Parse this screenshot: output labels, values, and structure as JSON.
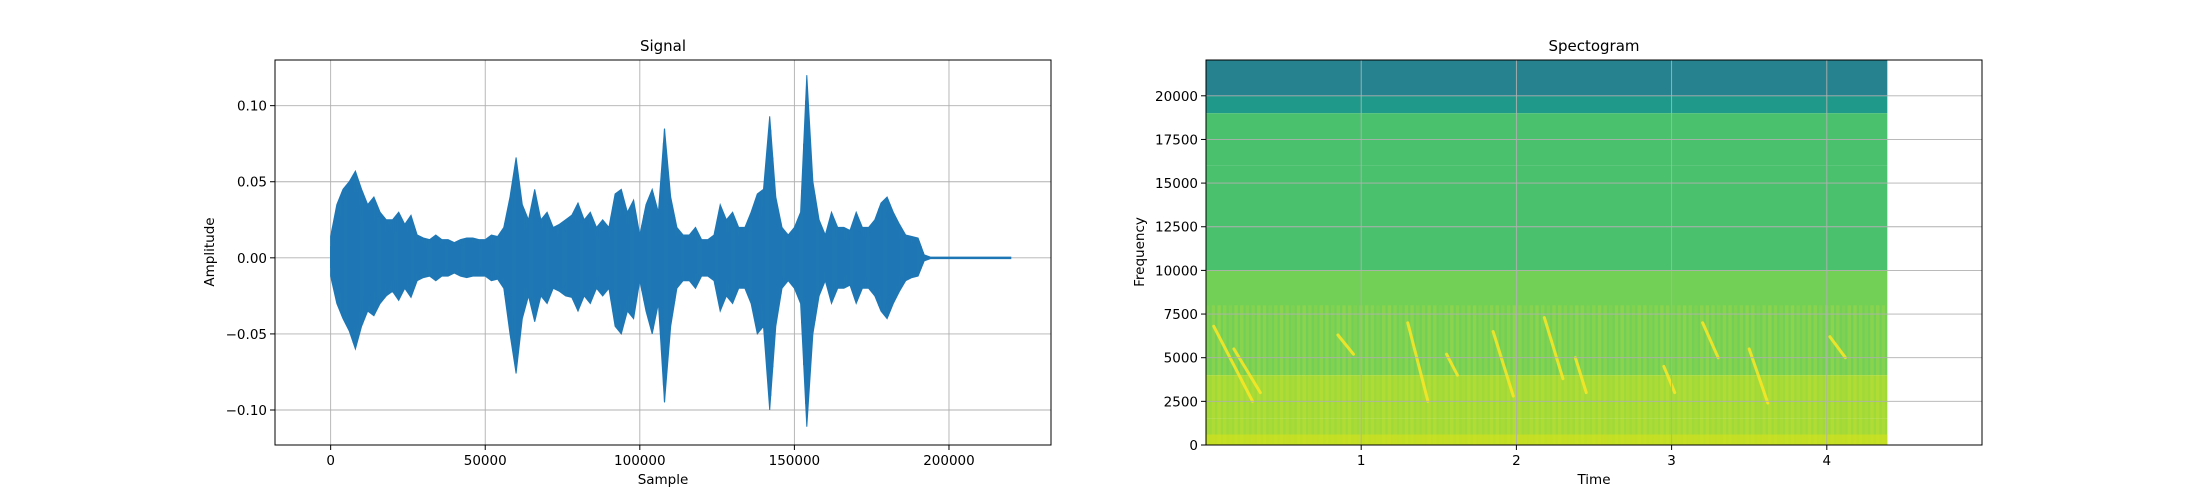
{
  "chart_data": [
    {
      "type": "line",
      "title": "Signal",
      "xlabel": "Sample",
      "ylabel": "Amplitude",
      "xlim": [
        -18000,
        233000
      ],
      "ylim": [
        -0.123,
        0.13
      ],
      "grid": true,
      "xticks": [
        0,
        50000,
        100000,
        150000,
        200000
      ],
      "xtick_labels": [
        "0",
        "50000",
        "100000",
        "150000",
        "200000"
      ],
      "yticks": [
        -0.1,
        -0.05,
        0.0,
        0.05,
        0.1
      ],
      "ytick_labels": [
        "−0.10",
        "−0.05",
        "0.00",
        "0.05",
        "0.10"
      ],
      "series_color": "#1f77b4",
      "series": [
        {
          "x": [
            0,
            2000,
            4000,
            6000,
            8000,
            10000,
            12000,
            14000,
            16000,
            18000,
            20000,
            22000,
            24000,
            26000,
            28000,
            30000,
            32000,
            34000,
            36000,
            38000,
            40000,
            42000,
            44000,
            46000,
            48000,
            50000,
            52000,
            54000,
            56000,
            58000,
            60000,
            62000,
            64000,
            66000,
            68000,
            70000,
            72000,
            74000,
            76000,
            78000,
            80000,
            82000,
            84000,
            86000,
            88000,
            90000,
            92000,
            94000,
            96000,
            98000,
            100000,
            102000,
            104000,
            106000,
            108000,
            110000,
            112000,
            114000,
            116000,
            118000,
            120000,
            122000,
            124000,
            126000,
            128000,
            130000,
            132000,
            134000,
            136000,
            138000,
            140000,
            142000,
            144000,
            146000,
            148000,
            150000,
            152000,
            154000,
            156000,
            158000,
            160000,
            162000,
            164000,
            166000,
            168000,
            170000,
            172000,
            174000,
            176000,
            178000,
            180000,
            182000,
            184000,
            186000,
            188000,
            190000,
            192000,
            194000,
            200000,
            210000,
            220000
          ],
          "ymax": [
            0.014,
            0.035,
            0.045,
            0.05,
            0.057,
            0.045,
            0.035,
            0.04,
            0.03,
            0.025,
            0.025,
            0.03,
            0.022,
            0.028,
            0.015,
            0.013,
            0.012,
            0.015,
            0.012,
            0.012,
            0.01,
            0.012,
            0.013,
            0.013,
            0.012,
            0.012,
            0.015,
            0.014,
            0.02,
            0.04,
            0.066,
            0.035,
            0.025,
            0.045,
            0.025,
            0.03,
            0.02,
            0.022,
            0.025,
            0.028,
            0.036,
            0.025,
            0.03,
            0.02,
            0.025,
            0.02,
            0.042,
            0.045,
            0.03,
            0.038,
            0.015,
            0.035,
            0.045,
            0.03,
            0.085,
            0.04,
            0.02,
            0.015,
            0.015,
            0.02,
            0.012,
            0.012,
            0.015,
            0.035,
            0.025,
            0.03,
            0.02,
            0.02,
            0.03,
            0.042,
            0.045,
            0.093,
            0.04,
            0.02,
            0.015,
            0.02,
            0.03,
            0.12,
            0.05,
            0.025,
            0.015,
            0.03,
            0.02,
            0.02,
            0.018,
            0.03,
            0.02,
            0.02,
            0.025,
            0.036,
            0.04,
            0.03,
            0.022,
            0.015,
            0.014,
            0.013,
            0.002,
            0.0005,
            0.0005,
            0.0005,
            0.0005
          ],
          "ymin": [
            -0.012,
            -0.03,
            -0.04,
            -0.048,
            -0.06,
            -0.045,
            -0.035,
            -0.038,
            -0.03,
            -0.025,
            -0.022,
            -0.028,
            -0.02,
            -0.026,
            -0.015,
            -0.013,
            -0.012,
            -0.015,
            -0.012,
            -0.012,
            -0.01,
            -0.012,
            -0.013,
            -0.012,
            -0.012,
            -0.012,
            -0.015,
            -0.014,
            -0.02,
            -0.05,
            -0.076,
            -0.04,
            -0.025,
            -0.042,
            -0.025,
            -0.03,
            -0.02,
            -0.022,
            -0.025,
            -0.026,
            -0.035,
            -0.025,
            -0.03,
            -0.02,
            -0.025,
            -0.02,
            -0.045,
            -0.05,
            -0.035,
            -0.04,
            -0.015,
            -0.035,
            -0.05,
            -0.03,
            -0.095,
            -0.045,
            -0.02,
            -0.015,
            -0.015,
            -0.02,
            -0.012,
            -0.012,
            -0.015,
            -0.035,
            -0.025,
            -0.03,
            -0.02,
            -0.02,
            -0.03,
            -0.05,
            -0.045,
            -0.1,
            -0.045,
            -0.02,
            -0.015,
            -0.02,
            -0.03,
            -0.111,
            -0.05,
            -0.025,
            -0.015,
            -0.03,
            -0.02,
            -0.02,
            -0.018,
            -0.03,
            -0.02,
            -0.02,
            -0.025,
            -0.035,
            -0.04,
            -0.03,
            -0.022,
            -0.015,
            -0.013,
            -0.012,
            -0.002,
            -0.0005,
            -0.0005,
            -0.0005,
            -0.0005
          ]
        }
      ]
    },
    {
      "type": "heatmap",
      "title": "Spectogram",
      "xlabel": "Time",
      "ylabel": "Frequency",
      "xlim": [
        0,
        5.0
      ],
      "ylim": [
        0,
        22050
      ],
      "data_xmax": 4.39,
      "grid": true,
      "xticks": [
        1,
        2,
        3,
        4
      ],
      "xtick_labels": [
        "1",
        "2",
        "3",
        "4"
      ],
      "yticks": [
        0,
        2500,
        5000,
        7500,
        10000,
        12500,
        15000,
        17500,
        20000
      ],
      "ytick_labels": [
        "0",
        "2500",
        "5000",
        "7500",
        "10000",
        "12500",
        "15000",
        "17500",
        "20000"
      ],
      "colormap": [
        "#26828e",
        "#1f9a8a",
        "#2db27d",
        "#4ac16d",
        "#73d056",
        "#a0da39",
        "#d0e11c",
        "#fde725"
      ],
      "bands": [
        {
          "f0": 20000,
          "f1": 22050,
          "level": 0.05
        },
        {
          "f0": 19000,
          "f1": 20000,
          "level": 0.15
        },
        {
          "f0": 16000,
          "f1": 19000,
          "level": 0.4
        },
        {
          "f0": 10000,
          "f1": 16000,
          "level": 0.45
        },
        {
          "f0": 7500,
          "f1": 10000,
          "level": 0.5
        },
        {
          "f0": 4000,
          "f1": 7500,
          "level": 0.58
        },
        {
          "f0": 1500,
          "f1": 4000,
          "level": 0.66
        },
        {
          "f0": 0,
          "f1": 1500,
          "level": 0.75
        }
      ],
      "streaks": [
        {
          "t0": 0.05,
          "f0": 6800,
          "t1": 0.3,
          "f1": 2500
        },
        {
          "t0": 0.18,
          "f0": 5500,
          "t1": 0.35,
          "f1": 3000
        },
        {
          "t0": 0.85,
          "f0": 6300,
          "t1": 0.95,
          "f1": 5200
        },
        {
          "t0": 1.3,
          "f0": 7000,
          "t1": 1.43,
          "f1": 2500
        },
        {
          "t0": 1.55,
          "f0": 5200,
          "t1": 1.62,
          "f1": 4000
        },
        {
          "t0": 1.85,
          "f0": 6500,
          "t1": 1.98,
          "f1": 2800
        },
        {
          "t0": 2.18,
          "f0": 7300,
          "t1": 2.3,
          "f1": 3800
        },
        {
          "t0": 2.38,
          "f0": 5000,
          "t1": 2.45,
          "f1": 3000
        },
        {
          "t0": 2.95,
          "f0": 4500,
          "t1": 3.02,
          "f1": 3000
        },
        {
          "t0": 3.2,
          "f0": 7000,
          "t1": 3.3,
          "f1": 5000
        },
        {
          "t0": 3.5,
          "f0": 5500,
          "t1": 3.62,
          "f1": 2400
        },
        {
          "t0": 4.02,
          "f0": 6200,
          "t1": 4.12,
          "f1": 5000
        }
      ]
    }
  ]
}
